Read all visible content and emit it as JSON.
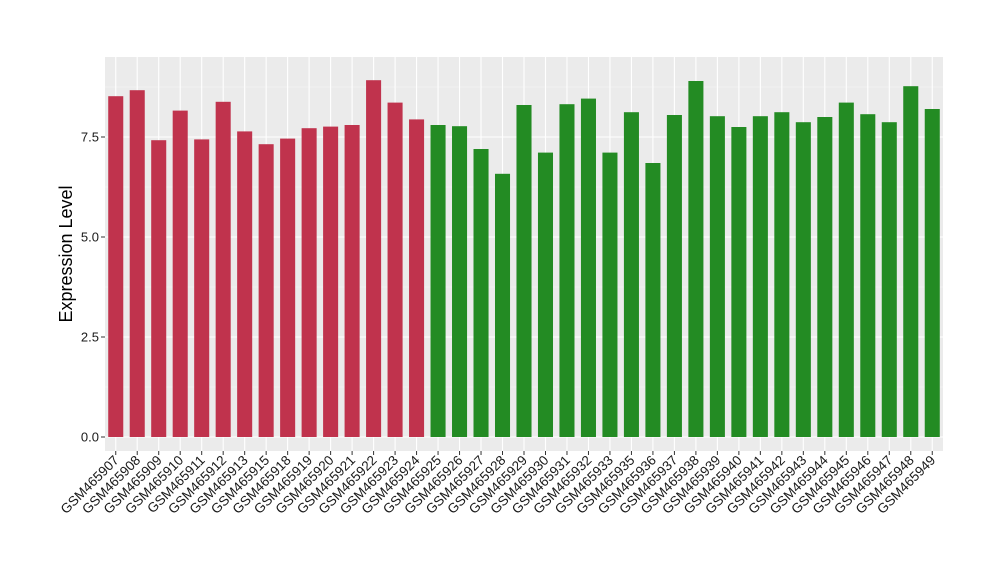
{
  "chart_data": {
    "type": "bar",
    "title": "",
    "xlabel": "",
    "ylabel": "Expression Level",
    "ylim": [
      -0.35,
      9.5
    ],
    "yticks": [
      0.0,
      2.5,
      5.0,
      7.5
    ],
    "ytick_labels": [
      "0.0",
      "2.5",
      "5.0",
      "7.5"
    ],
    "grid": true,
    "legend": "none",
    "categories": [
      "GSM465907",
      "GSM465908",
      "GSM465909",
      "GSM465910",
      "GSM465911",
      "GSM465912",
      "GSM465913",
      "GSM465915",
      "GSM465918",
      "GSM465919",
      "GSM465920",
      "GSM465921",
      "GSM465922",
      "GSM465923",
      "GSM465924",
      "GSM465925",
      "GSM465926",
      "GSM465927",
      "GSM465928",
      "GSM465929",
      "GSM465930",
      "GSM465931",
      "GSM465932",
      "GSM465933",
      "GSM465935",
      "GSM465936",
      "GSM465937",
      "GSM465938",
      "GSM465939",
      "GSM465940",
      "GSM465941",
      "GSM465942",
      "GSM465943",
      "GSM465944",
      "GSM465945",
      "GSM465946",
      "GSM465947",
      "GSM465948",
      "GSM465949"
    ],
    "values": [
      8.52,
      8.67,
      7.42,
      8.16,
      7.44,
      8.38,
      7.64,
      7.32,
      7.46,
      7.72,
      7.76,
      7.8,
      8.92,
      8.36,
      7.94,
      7.8,
      7.77,
      7.2,
      6.58,
      8.3,
      7.11,
      8.32,
      8.46,
      7.11,
      8.12,
      6.85,
      8.05,
      8.9,
      8.02,
      7.75,
      8.02,
      8.12,
      7.87,
      8.0,
      8.36,
      8.07,
      7.87,
      8.77,
      8.2
    ],
    "groups": [
      "red",
      "red",
      "red",
      "red",
      "red",
      "red",
      "red",
      "red",
      "red",
      "red",
      "red",
      "red",
      "red",
      "red",
      "red",
      "green",
      "green",
      "green",
      "green",
      "green",
      "green",
      "green",
      "green",
      "green",
      "green",
      "green",
      "green",
      "green",
      "green",
      "green",
      "green",
      "green",
      "green",
      "green",
      "green",
      "green",
      "green",
      "green",
      "green"
    ],
    "colors": {
      "red": "#c0334d",
      "green": "#238b23",
      "panel_background": "#ebebeb",
      "grid_major": "#ffffff",
      "grid_minor": "#f5f5f5"
    }
  }
}
